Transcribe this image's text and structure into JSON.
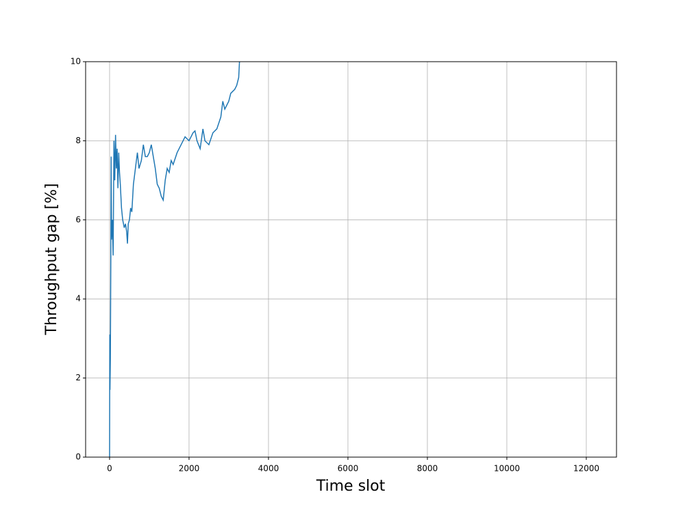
{
  "chart_data": {
    "type": "line",
    "xlabel": "Time slot",
    "ylabel": "Throughput gap [%]",
    "x": [
      0,
      5,
      10,
      20,
      30,
      40,
      50,
      70,
      90,
      110,
      130,
      150,
      170,
      190,
      210,
      230,
      250,
      270,
      300,
      330,
      370,
      400,
      430,
      450,
      470,
      500,
      530,
      560,
      600,
      650,
      700,
      740,
      800,
      850,
      900,
      950,
      1000,
      1050,
      1100,
      1150,
      1200,
      1250,
      1300,
      1350,
      1400,
      1450,
      1500,
      1550,
      1600,
      1700,
      1800,
      1900,
      2000,
      2100,
      2150,
      2200,
      2280,
      2350,
      2400,
      2500,
      2600,
      2700,
      2800,
      2850,
      2900,
      3000,
      3050,
      3150,
      3200,
      3250,
      3270
    ],
    "series": [
      {
        "color": "#1f77b4",
        "values": [
          0,
          3.1,
          1.7,
          2.5,
          4.8,
          7.6,
          5.5,
          6.0,
          5.1,
          8.0,
          7.0,
          8.15,
          7.3,
          7.8,
          6.8,
          7.7,
          7.2,
          6.9,
          6.3,
          6.0,
          5.8,
          5.9,
          5.7,
          5.4,
          5.9,
          6.0,
          6.3,
          6.2,
          6.9,
          7.3,
          7.7,
          7.3,
          7.5,
          7.9,
          7.6,
          7.6,
          7.7,
          7.9,
          7.6,
          7.3,
          6.9,
          6.8,
          6.6,
          6.5,
          7.0,
          7.3,
          7.2,
          7.5,
          7.4,
          7.7,
          7.9,
          8.1,
          8.0,
          8.2,
          8.25,
          8.0,
          7.8,
          8.3,
          8.0,
          7.9,
          8.2,
          8.3,
          8.6,
          9.0,
          8.8,
          9.0,
          9.2,
          9.3,
          9.4,
          9.6,
          10.0
        ]
      }
    ],
    "xlim": [
      -603,
      12760
    ],
    "ylim": [
      0,
      10
    ],
    "xticks": [
      0,
      2000,
      4000,
      6000,
      8000,
      10000,
      12000
    ],
    "yticks": [
      0,
      2,
      4,
      6,
      8,
      10
    ],
    "grid": true
  }
}
